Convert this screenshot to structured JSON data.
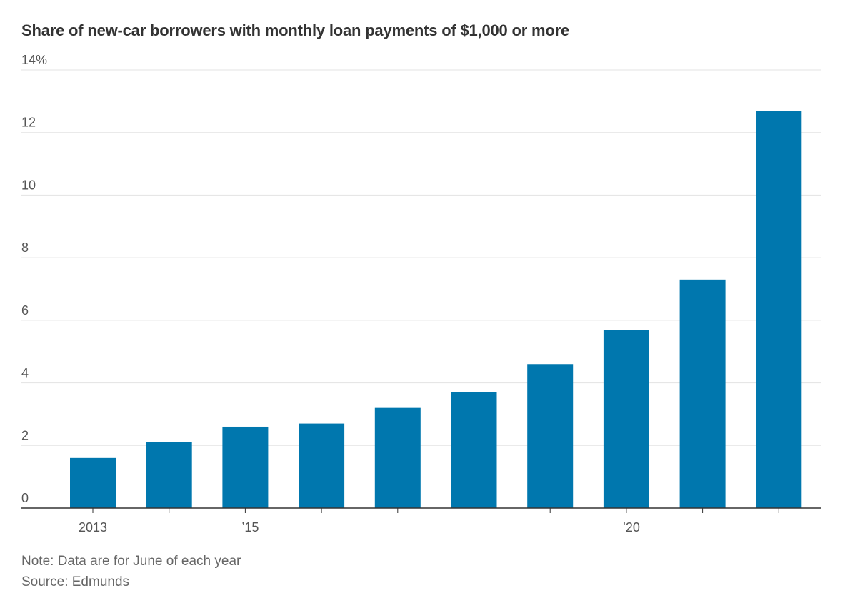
{
  "title": "Share of new-car borrowers with monthly loan payments of $1,000 or more",
  "note": "Note: Data are for June of each year",
  "source": "Source: Edmunds",
  "chart_data": {
    "type": "bar",
    "title": "Share of new-car borrowers with monthly loan payments of $1,000 or more",
    "categories": [
      "2013",
      "2014",
      "2015",
      "2016",
      "2017",
      "2018",
      "2019",
      "2020",
      "2021",
      "2022"
    ],
    "values": [
      1.6,
      2.1,
      2.6,
      2.7,
      3.2,
      3.7,
      4.6,
      5.7,
      7.3,
      12.7
    ],
    "unit": "%",
    "xlabel": "",
    "ylabel": "",
    "ylim": [
      0,
      14
    ],
    "y_ticks": [
      0,
      2,
      4,
      6,
      8,
      10,
      12,
      14
    ],
    "y_tick_labels": [
      "0",
      "2",
      "4",
      "6",
      "8",
      "10",
      "12",
      "14%"
    ],
    "x_tick_labels": [
      {
        "category": "2013",
        "label": "2013"
      },
      {
        "category": "2015",
        "label": "’15"
      },
      {
        "category": "2020",
        "label": "’20"
      }
    ],
    "grid": true,
    "bar_color": "#0077AE",
    "gridline_color": "#e3e3e3",
    "axis_color": "#333333"
  }
}
